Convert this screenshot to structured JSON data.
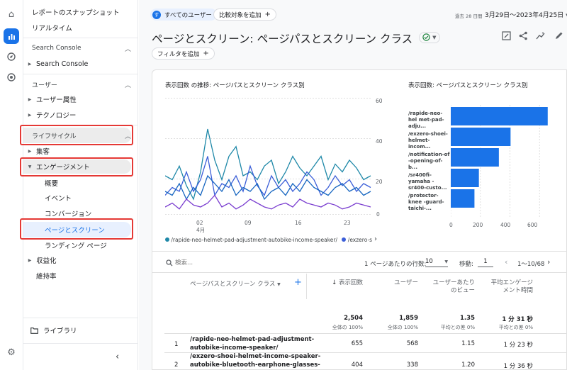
{
  "rail": {
    "items": [
      "home-icon",
      "reports-icon",
      "explore-icon",
      "advertising-icon"
    ],
    "bottom": "gear-icon"
  },
  "nav": {
    "snapshot": "レポートのスナップショット",
    "realtime": "リアルタイム",
    "search_console_head": "Search Console",
    "search_console_item": "Search Console",
    "user_head": "ユーザー",
    "user_attr": "ユーザー属性",
    "technology": "テクノロジー",
    "lifecycle_head": "ライフサイクル",
    "acquisition": "集客",
    "engagement": "エンゲージメント",
    "overview": "概要",
    "events": "イベント",
    "conversions": "コンバージョン",
    "pages_screens": "ページとスクリーン",
    "landing": "ランディング ページ",
    "monetization": "収益化",
    "retention": "維持率",
    "library": "ライブラリ"
  },
  "header": {
    "all_users": "すべてのユーザー",
    "compare": "比較対象を追加",
    "date_prefix": "過去 28 日間",
    "date_range": "3月29日～2023年4月25日",
    "title": "ページとスクリーン: ページパスとスクリーン クラス",
    "filter": "フィルタを追加"
  },
  "colors": {
    "accent": "#1a73e8",
    "highlight": "#e53935"
  },
  "line_chart": {
    "title": "表示回数 の推移: ページパスとスクリーン クラス別",
    "y_ticks": [
      "60",
      "40",
      "20",
      "0"
    ],
    "x_ticks": [
      "02",
      "09",
      "16",
      "23"
    ],
    "x_sub": "4月",
    "legend1": "/rapide-neo-helmet-pad-adjustment-autobike-income-speaker/",
    "legend2": "/exzero-s"
  },
  "bar_chart": {
    "title": "表示回数: ページパスとスクリーン クラス別",
    "labels": [
      "/rapide-neo-hel met-pad-adju...",
      "/exzero-shoei- helmet-incom...",
      "/notification-of -opening-of-b...",
      "/sr400fi-yamaha -sr400-custo...",
      "/protector-knee -guard-taichi-..."
    ],
    "x_ticks": [
      "0",
      "200",
      "400",
      "600"
    ]
  },
  "chart_data": {
    "type": "bar",
    "categories": [
      "/rapide-neo-helmet-pad-adju...",
      "/exzero-shoei-helmet-incom...",
      "/notification-of-opening-of-b...",
      "/sr400fi-yamaha-sr400-custo...",
      "/protector-knee-guard-taichi-..."
    ],
    "values": [
      655,
      404,
      325,
      190,
      160
    ],
    "xlim": [
      0,
      680
    ],
    "ylabel": "",
    "xlabel": ""
  },
  "table": {
    "search_placeholder": "検索...",
    "rows_per_page_label": "1 ページあたりの行数:",
    "rows_per_page": "10",
    "goto_label": "移動:",
    "goto_value": "1",
    "pagination": "1～10/68",
    "dim_header": "ページパスとスクリーン クラス",
    "col_views": "表示回数",
    "col_users": "ユーザー",
    "col_views_per_user": "ユーザーあたりのビュー",
    "col_avg_time": "平均エンゲージメント時間",
    "totals": {
      "views": "2,504",
      "views_sub": "全体の 100%",
      "users": "1,859",
      "users_sub": "全体の 100%",
      "vpu": "1.35",
      "vpu_sub": "平均との差 0%",
      "time": "1 分 31 秒",
      "time_sub": "平均との差 0%"
    },
    "rows": [
      {
        "n": "1",
        "path1": "/rapide-neo-helmet-pad-adjustment-",
        "path2": "autobike-income-speaker/",
        "views": "655",
        "users": "568",
        "vpu": "1.15",
        "time": "1 分 23 秒"
      },
      {
        "n": "2",
        "path1": "/exzero-shoei-helmet-income-speaker-",
        "path2": "autobike-bluetooth-earphone-glasses-",
        "views": "404",
        "users": "338",
        "vpu": "1.20",
        "time": "1 分 36 秒"
      }
    ]
  }
}
